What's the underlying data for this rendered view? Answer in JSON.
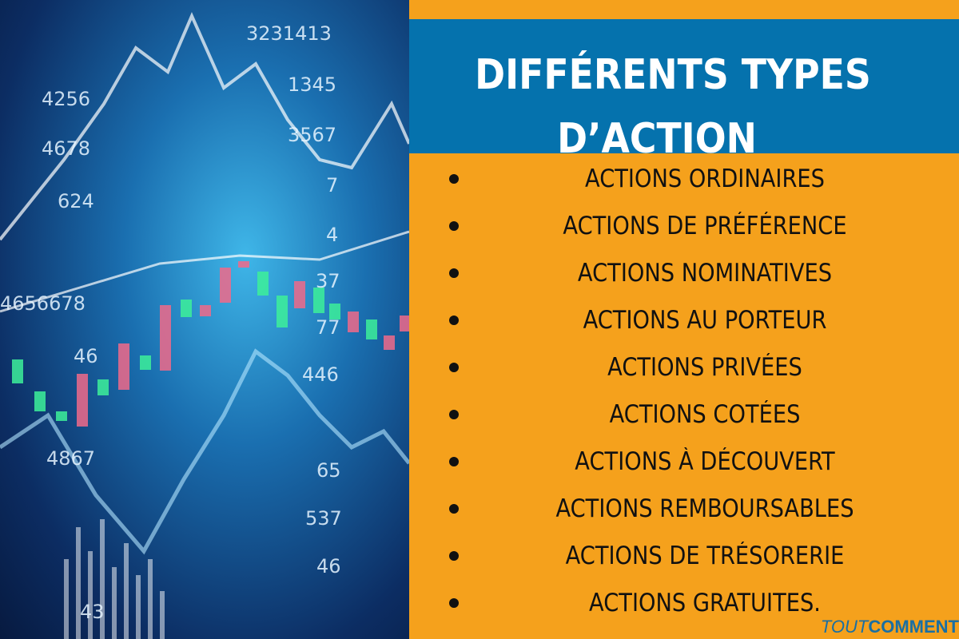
{
  "photo": {
    "numbers": [
      "3231413",
      "1345",
      "4256",
      "3567",
      "4678",
      "7",
      "624",
      "4",
      "37",
      "4656678",
      "77",
      "46",
      "446",
      "4867",
      "65",
      "537",
      "46",
      "43"
    ]
  },
  "header": {
    "title_line1": "DIFFÉRENTS TYPES",
    "title_line2": "D’ACTION"
  },
  "list": {
    "items": [
      {
        "label": "ACTIONS ORDINAIRES"
      },
      {
        "label": "ACTIONS DE PRÉFÉRENCE"
      },
      {
        "label": "ACTIONS NOMINATIVES"
      },
      {
        "label": "ACTIONS AU PORTEUR"
      },
      {
        "label": "ACTIONS PRIVÉES"
      },
      {
        "label": "ACTIONS COTÉES"
      },
      {
        "label": "ACTIONS À DÉCOUVERT"
      },
      {
        "label": "ACTIONS REMBOURSABLES"
      },
      {
        "label": "ACTIONS DE TRÉSORERIE"
      },
      {
        "label": "ACTIONS GRATUITES."
      }
    ]
  },
  "logo": {
    "part1": "TOUT",
    "part2": "COMMENT"
  },
  "colors": {
    "background": "#f5a11c",
    "banner": "#0572ad",
    "logo": "#1a6fa3"
  }
}
